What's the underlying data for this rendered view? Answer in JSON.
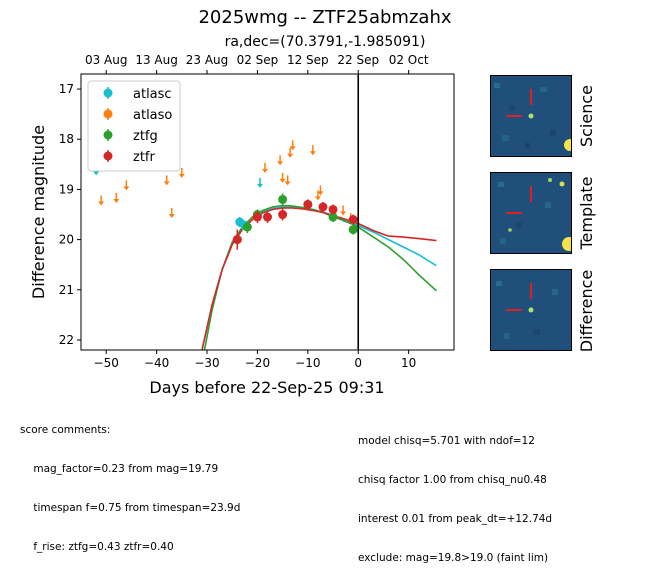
{
  "header": {
    "title": "2025wmg -- ZTF25abmzahx",
    "subtitle": "ra,dec=(70.3791,-1.985091)"
  },
  "chart_data": {
    "type": "scatter",
    "xlabel": "Days before 22-Sep-25 09:31",
    "ylabel": "Difference magnitude",
    "xlim": [
      -55,
      19
    ],
    "ylim": [
      22.2,
      16.7
    ],
    "y_inverted": true,
    "xticks": [
      -50,
      -40,
      -30,
      -20,
      -10,
      0,
      10
    ],
    "yticks": [
      17,
      18,
      19,
      20,
      21,
      22
    ],
    "top_axis_labels": [
      {
        "x": -50,
        "label": "03 Aug"
      },
      {
        "x": -40,
        "label": "13 Aug"
      },
      {
        "x": -30,
        "label": "23 Aug"
      },
      {
        "x": -20,
        "label": "02 Sep"
      },
      {
        "x": -10,
        "label": "12 Sep"
      },
      {
        "x": 0,
        "label": "22 Sep"
      },
      {
        "x": 10,
        "label": "02 Oct"
      }
    ],
    "vline_x": 0,
    "legend": {
      "position": "top-left"
    },
    "series": [
      {
        "name": "atlasc",
        "color": "#17becf",
        "points": [
          {
            "x": -23.5,
            "y": 19.65,
            "err": 0.1
          },
          {
            "x": -22.5,
            "y": 19.72,
            "err": 0.1
          }
        ],
        "upper_limits": [
          {
            "x": -52,
            "y": 18.6
          },
          {
            "x": -19.5,
            "y": 18.85
          }
        ]
      },
      {
        "name": "atlaso",
        "color": "#ff7f0e",
        "points": [],
        "upper_limits": [
          {
            "x": -51,
            "y": 19.2
          },
          {
            "x": -48,
            "y": 19.15
          },
          {
            "x": -46,
            "y": 18.9
          },
          {
            "x": -38,
            "y": 18.8
          },
          {
            "x": -37,
            "y": 19.45
          },
          {
            "x": -35,
            "y": 18.65
          },
          {
            "x": -18.5,
            "y": 18.55
          },
          {
            "x": -15.5,
            "y": 18.4
          },
          {
            "x": -15,
            "y": 18.75
          },
          {
            "x": -14,
            "y": 18.8
          },
          {
            "x": -13.5,
            "y": 18.25
          },
          {
            "x": -13,
            "y": 18.1
          },
          {
            "x": -9,
            "y": 18.2
          },
          {
            "x": -8,
            "y": 19.1
          },
          {
            "x": -7.5,
            "y": 19.0
          },
          {
            "x": -4.5,
            "y": 19.5
          },
          {
            "x": -3,
            "y": 19.4
          },
          {
            "x": -1.5,
            "y": 19.55
          }
        ]
      },
      {
        "name": "ztfg",
        "color": "#2ca02c",
        "points": [
          {
            "x": -24,
            "y": 20.0,
            "err": 0.15
          },
          {
            "x": -22,
            "y": 19.75,
            "err": 0.12
          },
          {
            "x": -20,
            "y": 19.5,
            "err": 0.1
          },
          {
            "x": -15,
            "y": 19.2,
            "err": 0.12
          },
          {
            "x": -10,
            "y": 19.3,
            "err": 0.1
          },
          {
            "x": -5,
            "y": 19.55,
            "err": 0.1
          },
          {
            "x": -1,
            "y": 19.8,
            "err": 0.1
          }
        ],
        "upper_limits": []
      },
      {
        "name": "ztfr",
        "color": "#d62728",
        "points": [
          {
            "x": -24,
            "y": 20.0,
            "err": 0.2
          },
          {
            "x": -20,
            "y": 19.55,
            "err": 0.12
          },
          {
            "x": -18,
            "y": 19.55,
            "err": 0.12
          },
          {
            "x": -15,
            "y": 19.5,
            "err": 0.12
          },
          {
            "x": -10,
            "y": 19.3,
            "err": 0.1
          },
          {
            "x": -7,
            "y": 19.35,
            "err": 0.1
          },
          {
            "x": -5,
            "y": 19.4,
            "err": 0.1
          },
          {
            "x": -1,
            "y": 19.6,
            "err": 0.1
          }
        ],
        "upper_limits": []
      }
    ],
    "model_curves": [
      {
        "name": "atlasc",
        "color": "#17becf",
        "points": [
          [
            -31,
            22.2
          ],
          [
            -29,
            21.3
          ],
          [
            -27,
            20.6
          ],
          [
            -25,
            20.1
          ],
          [
            -23,
            19.8
          ],
          [
            -21,
            19.6
          ],
          [
            -19,
            19.45
          ],
          [
            -17,
            19.38
          ],
          [
            -15,
            19.35
          ],
          [
            -13,
            19.35
          ],
          [
            -11,
            19.37
          ],
          [
            -9,
            19.4
          ],
          [
            -7,
            19.45
          ],
          [
            -5,
            19.52
          ],
          [
            -3,
            19.6
          ],
          [
            -1,
            19.68
          ],
          [
            0,
            19.72
          ],
          [
            3,
            19.85
          ],
          [
            6,
            20.0
          ],
          [
            9,
            20.15
          ],
          [
            12,
            20.3
          ],
          [
            15.5,
            20.52
          ]
        ]
      },
      {
        "name": "ztfg",
        "color": "#2ca02c",
        "points": [
          [
            -30.5,
            22.2
          ],
          [
            -29,
            21.4
          ],
          [
            -27,
            20.6
          ],
          [
            -25,
            20.05
          ],
          [
            -23,
            19.75
          ],
          [
            -21,
            19.55
          ],
          [
            -19,
            19.42
          ],
          [
            -17,
            19.35
          ],
          [
            -15,
            19.32
          ],
          [
            -13,
            19.33
          ],
          [
            -11,
            19.36
          ],
          [
            -9,
            19.4
          ],
          [
            -7,
            19.46
          ],
          [
            -5,
            19.54
          ],
          [
            -3,
            19.62
          ],
          [
            -1,
            19.7
          ],
          [
            0,
            19.75
          ],
          [
            3,
            19.95
          ],
          [
            6,
            20.15
          ],
          [
            9,
            20.4
          ],
          [
            12,
            20.7
          ],
          [
            15.5,
            21.02
          ]
        ]
      },
      {
        "name": "ztfr",
        "color": "#d62728",
        "points": [
          [
            -31,
            22.2
          ],
          [
            -29,
            21.3
          ],
          [
            -27,
            20.6
          ],
          [
            -25,
            20.1
          ],
          [
            -23,
            19.8
          ],
          [
            -21,
            19.6
          ],
          [
            -19,
            19.47
          ],
          [
            -17,
            19.4
          ],
          [
            -15,
            19.37
          ],
          [
            -13,
            19.37
          ],
          [
            -11,
            19.39
          ],
          [
            -9,
            19.42
          ],
          [
            -7,
            19.46
          ],
          [
            -5,
            19.52
          ],
          [
            -3,
            19.58
          ],
          [
            -1,
            19.65
          ],
          [
            0,
            19.68
          ],
          [
            3,
            19.82
          ],
          [
            6,
            19.93
          ],
          [
            9,
            19.95
          ],
          [
            12,
            19.98
          ],
          [
            15.5,
            20.02
          ]
        ]
      }
    ]
  },
  "thumbnails": [
    {
      "label": "Science"
    },
    {
      "label": "Template"
    },
    {
      "label": "Difference"
    }
  ],
  "comments": {
    "left": [
      "score comments:",
      "    mag_factor=0.23 from mag=19.79",
      "    timespan f=0.75 from timespan=23.9d",
      "    f_rise: ztfg=0.43 ztfr=0.40"
    ],
    "right": [
      "model chisq=5.701 with ndof=12",
      "chisq factor 1.00 from chisq_nu0.48",
      "interest 0.01 from peak_dt=+12.74d",
      "exclude: mag=19.8>19.0 (faint lim)"
    ]
  }
}
